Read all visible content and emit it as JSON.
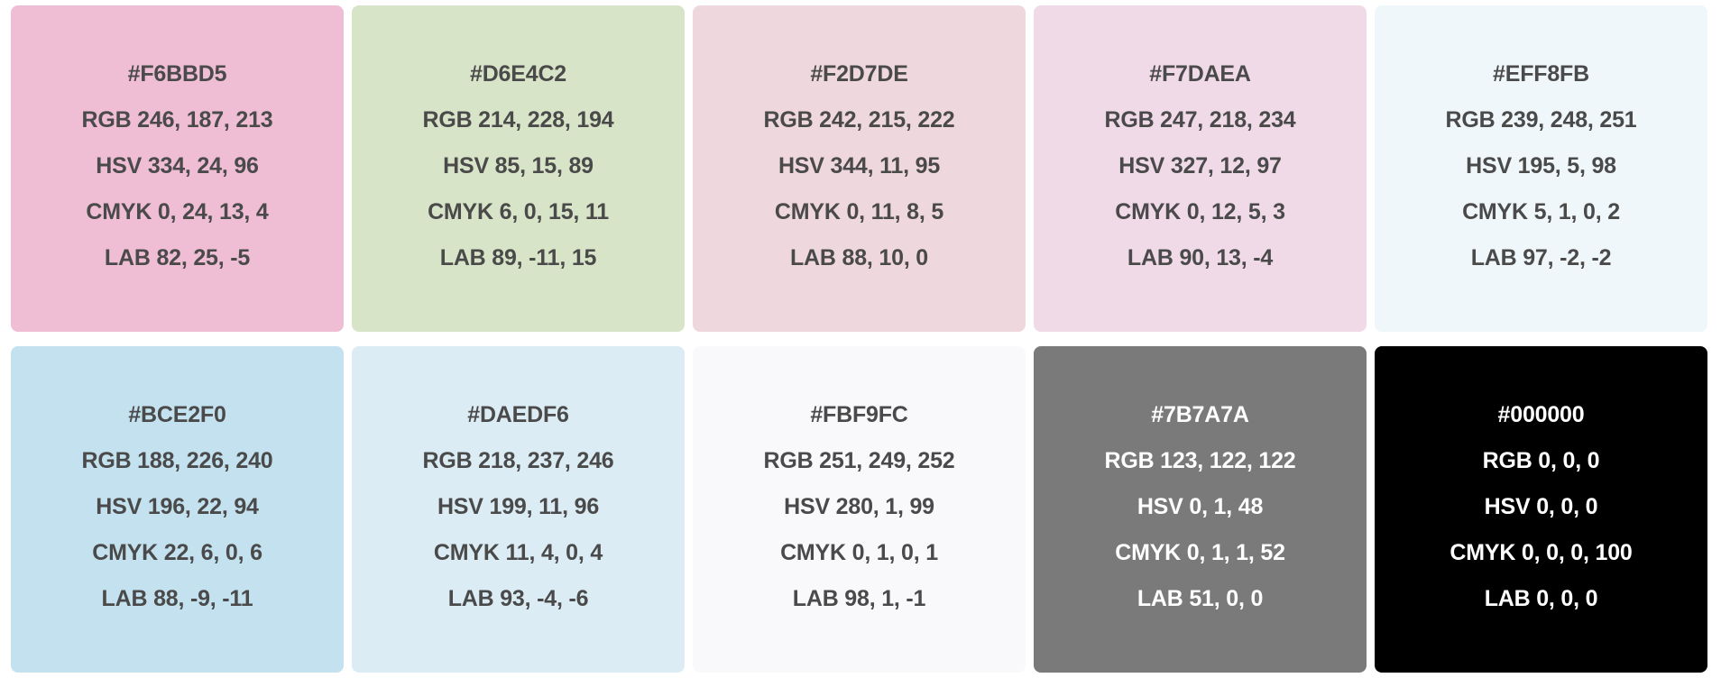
{
  "swatches": [
    {
      "hex": "#F6BBD5",
      "rgb": "RGB 246, 187, 213",
      "hsv": "HSV 334, 24, 96",
      "cmyk": "CMYK 0, 24, 13, 4",
      "lab": "LAB 82, 25, -5",
      "background": "#EFBDD4",
      "text_color": "#4A4A4A"
    },
    {
      "hex": "#D6E4C2",
      "rgb": "RGB 214, 228, 194",
      "hsv": "HSV 85, 15, 89",
      "cmyk": "CMYK 6, 0, 15, 11",
      "lab": "LAB 89, -11, 15",
      "background": "#D8E4C7",
      "text_color": "#4A4A4A"
    },
    {
      "hex": "#F2D7DE",
      "rgb": "RGB 242, 215, 222",
      "hsv": "HSV 344, 11, 95",
      "cmyk": "CMYK 0, 11, 8, 5",
      "lab": "LAB 88, 10, 0",
      "background": "#EFD7DE",
      "text_color": "#4A4A4A"
    },
    {
      "hex": "#F7DAEA",
      "rgb": "RGB 247, 218, 234",
      "hsv": "HSV 327, 12, 97",
      "cmyk": "CMYK 0, 12, 5, 3",
      "lab": "LAB 90, 13, -4",
      "background": "#F1DAE8",
      "text_color": "#4A4A4A"
    },
    {
      "hex": "#EFF8FB",
      "rgb": "RGB 239, 248, 251",
      "hsv": "HSV 195, 5, 98",
      "cmyk": "CMYK 5, 1, 0, 2",
      "lab": "LAB 97, -2, -2",
      "background": "#EFF7FA",
      "text_color": "#4A4A4A"
    },
    {
      "hex": "#BCE2F0",
      "rgb": "RGB 188, 226, 240",
      "hsv": "HSV 196, 22, 94",
      "cmyk": "CMYK 22, 6, 0, 6",
      "lab": "LAB 88, -9, -11",
      "background": "#C3E1EE",
      "text_color": "#4A4A4A"
    },
    {
      "hex": "#DAEDF6",
      "rgb": "RGB 218, 237, 246",
      "hsv": "HSV 199, 11, 96",
      "cmyk": "CMYK 11, 4, 0, 4",
      "lab": "LAB 93, -4, -6",
      "background": "#DBECF4",
      "text_color": "#4A4A4A"
    },
    {
      "hex": "#FBF9FC",
      "rgb": "RGB 251, 249, 252",
      "hsv": "HSV 280, 1, 99",
      "cmyk": "CMYK 0, 1, 0, 1",
      "lab": "LAB 98, 1, -1",
      "background": "#F9F8FB",
      "text_color": "#4A4A4A"
    },
    {
      "hex": "#7B7A7A",
      "rgb": "RGB 123, 122, 122",
      "hsv": "HSV 0, 1, 48",
      "cmyk": "CMYK 0, 1, 1, 52",
      "lab": "LAB 51, 0, 0",
      "background": "#7B7A7A",
      "text_color": "#FFFFFF"
    },
    {
      "hex": "#000000",
      "rgb": "RGB 0, 0, 0",
      "hsv": "HSV 0, 0, 0",
      "cmyk": "CMYK 0, 0, 0, 100",
      "lab": "LAB 0, 0, 0",
      "background": "#000000",
      "text_color": "#FFFFFF"
    }
  ]
}
